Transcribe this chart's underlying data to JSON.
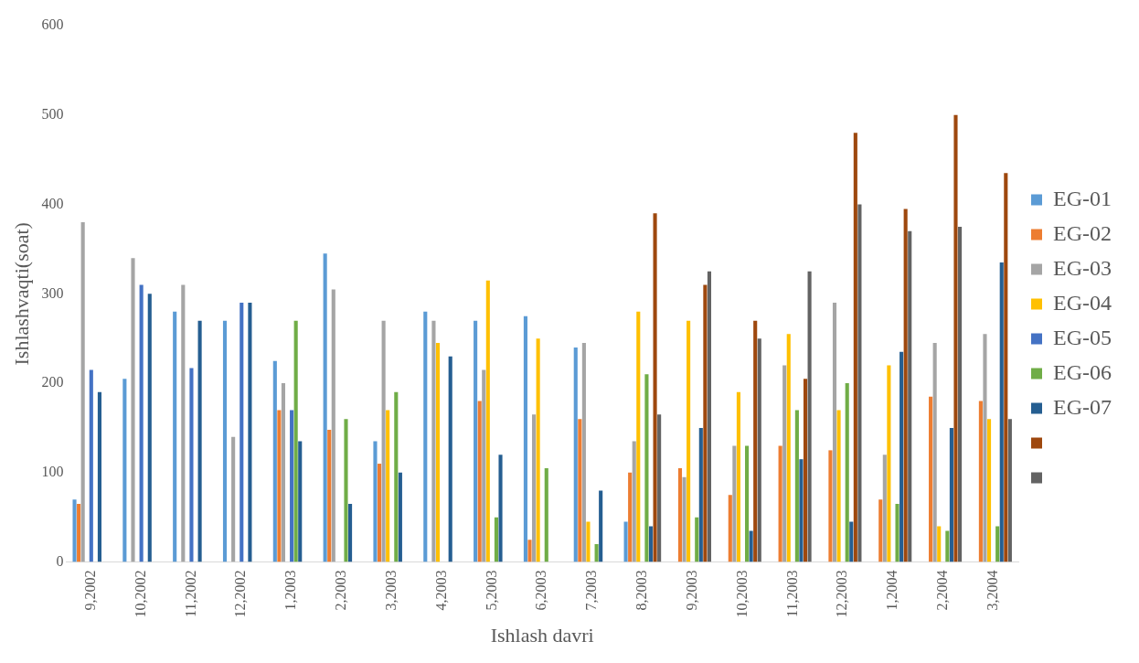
{
  "chart_data": {
    "type": "bar",
    "xlabel": "Ishlash davri",
    "ylabel": "Ishlashvaqti(soat)",
    "categories": [
      "9,2002",
      "10,2002",
      "11,2002",
      "12,2002",
      "1,2003",
      "2,2003",
      "3,2003",
      "4,2003",
      "5,2003",
      "6,2003",
      "7,2003",
      "8,2003",
      "9,2003",
      "10,2003",
      "11,2003",
      "12,2003",
      "1,2004",
      "2,2004",
      "3,2004"
    ],
    "series": [
      {
        "name": "EG-01",
        "color": "#5b9bd5",
        "values": [
          70,
          205,
          280,
          270,
          225,
          345,
          135,
          280,
          270,
          275,
          240,
          45,
          null,
          null,
          null,
          null,
          null,
          null,
          null
        ]
      },
      {
        "name": "EG-02",
        "color": "#ed7d31",
        "values": [
          65,
          null,
          null,
          null,
          170,
          148,
          110,
          null,
          180,
          25,
          160,
          100,
          105,
          75,
          130,
          125,
          70,
          185,
          180
        ]
      },
      {
        "name": "EG-03",
        "color": "#a5a5a5",
        "values": [
          380,
          340,
          310,
          140,
          200,
          305,
          270,
          270,
          215,
          165,
          245,
          135,
          95,
          130,
          220,
          290,
          120,
          245,
          255
        ]
      },
      {
        "name": "EG-04",
        "color": "#ffc000",
        "values": [
          null,
          null,
          null,
          null,
          null,
          null,
          170,
          245,
          315,
          250,
          45,
          280,
          270,
          190,
          255,
          170,
          220,
          40,
          160
        ]
      },
      {
        "name": "EG-05",
        "color": "#4472c4",
        "values": [
          215,
          310,
          217,
          290,
          170,
          null,
          null,
          null,
          null,
          null,
          null,
          null,
          null,
          null,
          null,
          null,
          null,
          null,
          null
        ]
      },
      {
        "name": "EG-06",
        "color": "#70ad47",
        "values": [
          null,
          null,
          null,
          null,
          270,
          160,
          190,
          null,
          50,
          105,
          20,
          210,
          50,
          130,
          170,
          200,
          65,
          35,
          40
        ]
      },
      {
        "name": "EG-07",
        "color": "#255e91",
        "values": [
          190,
          300,
          270,
          290,
          135,
          65,
          100,
          230,
          120,
          null,
          80,
          40,
          150,
          35,
          115,
          45,
          235,
          150,
          335
        ]
      },
      {
        "color": "#9e480e",
        "values": [
          null,
          null,
          null,
          null,
          null,
          null,
          null,
          null,
          null,
          null,
          null,
          390,
          310,
          270,
          205,
          480,
          395,
          500,
          435
        ]
      },
      {
        "color": "#636363",
        "values": [
          null,
          null,
          null,
          null,
          null,
          null,
          null,
          null,
          null,
          null,
          null,
          165,
          325,
          250,
          325,
          400,
          370,
          375,
          160
        ]
      }
    ],
    "ylim": [
      0,
      600
    ],
    "yticks": [
      0,
      100,
      200,
      300,
      400,
      500,
      600
    ],
    "grid": false,
    "legend": "right"
  }
}
